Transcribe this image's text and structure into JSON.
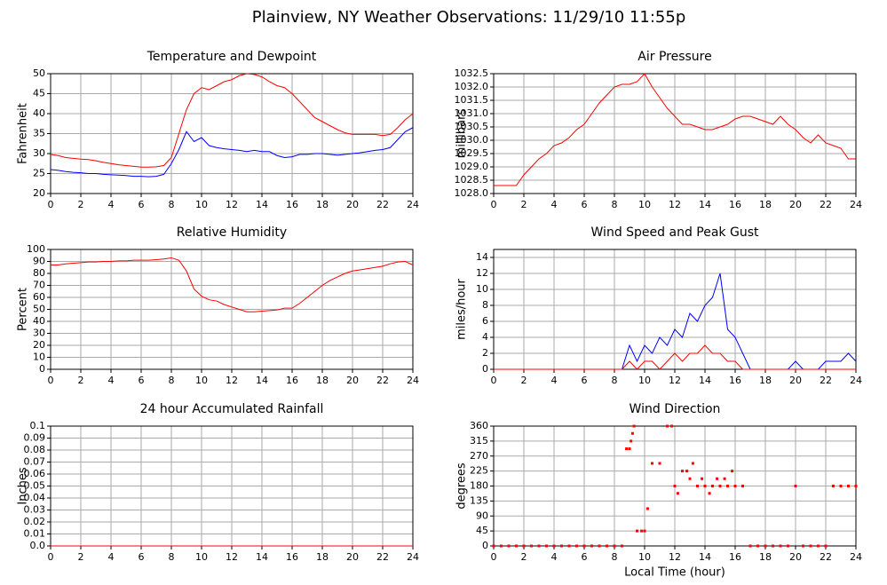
{
  "title": "Plainview, NY Weather Observations: 11/29/10 11:55p",
  "chart_data": [
    {
      "type": "line",
      "title": "Temperature and Dewpoint",
      "ylabel": "Fahrenheit",
      "x": [
        0,
        0.5,
        1,
        1.5,
        2,
        2.5,
        3,
        3.5,
        4,
        4.5,
        5,
        5.5,
        6,
        6.5,
        7,
        7.5,
        8,
        8.5,
        9,
        9.5,
        10,
        10.5,
        11,
        11.5,
        12,
        12.5,
        13,
        13.5,
        14,
        14.5,
        15,
        15.5,
        16,
        16.5,
        17,
        17.5,
        18,
        18.5,
        19,
        19.5,
        20,
        20.5,
        21,
        21.5,
        22,
        22.5,
        23,
        23.5,
        24
      ],
      "series": [
        {
          "color": "#ff0000",
          "values": [
            29.8,
            29.5,
            29,
            28.8,
            28.6,
            28.5,
            28.2,
            27.8,
            27.5,
            27.2,
            27,
            26.8,
            26.6,
            26.6,
            26.7,
            27,
            29,
            35,
            41,
            45,
            46.5,
            46,
            47,
            48,
            48.5,
            49.5,
            50,
            49.8,
            49.2,
            48,
            47,
            46.5,
            45,
            43,
            41,
            39,
            38,
            37,
            36,
            35.2,
            34.8,
            34.8,
            34.8,
            34.8,
            34.5,
            34.8,
            36.5,
            38.5,
            40
          ]
        },
        {
          "color": "#0000ff",
          "values": [
            26,
            25.8,
            25.5,
            25.3,
            25.2,
            25,
            25,
            24.8,
            24.7,
            24.6,
            24.5,
            24.3,
            24.3,
            24.2,
            24.3,
            24.8,
            27.5,
            31,
            35.5,
            33,
            34,
            32,
            31.5,
            31.2,
            31,
            30.8,
            30.5,
            30.8,
            30.5,
            30.5,
            29.5,
            29,
            29.2,
            29.8,
            29.8,
            30,
            30,
            29.8,
            29.6,
            29.8,
            30,
            30.2,
            30.5,
            30.8,
            31,
            31.5,
            33.5,
            35.5,
            36.5
          ]
        }
      ],
      "xlim": [
        0,
        24
      ],
      "xticks": [
        0,
        2,
        4,
        6,
        8,
        10,
        12,
        14,
        16,
        18,
        20,
        22,
        24
      ],
      "ylim": [
        20,
        50
      ],
      "yticks": [
        20,
        25,
        30,
        35,
        40,
        45,
        50
      ],
      "grid": true
    },
    {
      "type": "line",
      "title": "Air Pressure",
      "ylabel": "millibars",
      "x": [
        0,
        0.5,
        1,
        1.5,
        2,
        2.5,
        3,
        3.5,
        4,
        4.5,
        5,
        5.5,
        6,
        6.5,
        7,
        7.5,
        8,
        8.5,
        9,
        9.5,
        10,
        10.5,
        11,
        11.5,
        12,
        12.5,
        13,
        13.5,
        14,
        14.5,
        15,
        15.5,
        16,
        16.5,
        17,
        17.5,
        18,
        18.5,
        19,
        19.5,
        20,
        20.5,
        21,
        21.5,
        22,
        22.5,
        23,
        23.5,
        24
      ],
      "series": [
        {
          "color": "#ff0000",
          "values": [
            1028.3,
            1028.3,
            1028.3,
            1028.3,
            1028.7,
            1029,
            1029.3,
            1029.5,
            1029.8,
            1029.9,
            1030.1,
            1030.4,
            1030.6,
            1031,
            1031.4,
            1031.7,
            1032,
            1032.1,
            1032.1,
            1032.2,
            1032.5,
            1032,
            1031.6,
            1031.2,
            1030.9,
            1030.6,
            1030.6,
            1030.5,
            1030.4,
            1030.4,
            1030.5,
            1030.6,
            1030.8,
            1030.9,
            1030.9,
            1030.8,
            1030.7,
            1030.6,
            1030.9,
            1030.6,
            1030.4,
            1030.1,
            1029.9,
            1030.2,
            1029.9,
            1029.8,
            1029.7,
            1029.3,
            1029.3
          ]
        }
      ],
      "xlim": [
        0,
        24
      ],
      "xticks": [
        0,
        2,
        4,
        6,
        8,
        10,
        12,
        14,
        16,
        18,
        20,
        22,
        24
      ],
      "ylim": [
        1028,
        1032.5
      ],
      "yticks": [
        {
          "value": 1028,
          "label": "1028.0"
        },
        1028.5,
        {
          "value": 1029,
          "label": "1029.0"
        },
        1029.5,
        {
          "value": 1030,
          "label": "1030.0"
        },
        1030.5,
        {
          "value": 1031,
          "label": "1031.0"
        },
        1031.5,
        {
          "value": 1032,
          "label": "1032.0"
        },
        1032.5
      ],
      "grid": true
    },
    {
      "type": "line",
      "title": "Relative Humidity",
      "ylabel": "Percent",
      "x": [
        0,
        0.5,
        1,
        1.5,
        2,
        2.5,
        3,
        3.5,
        4,
        4.5,
        5,
        5.5,
        6,
        6.5,
        7,
        7.5,
        8,
        8.5,
        9,
        9.5,
        10,
        10.5,
        11,
        11.5,
        12,
        12.5,
        13,
        13.5,
        14,
        14.5,
        15,
        15.5,
        16,
        16.5,
        17,
        17.5,
        18,
        18.5,
        19,
        19.5,
        20,
        20.5,
        21,
        21.5,
        22,
        22.5,
        23,
        23.5,
        24
      ],
      "series": [
        {
          "color": "#ff0000",
          "values": [
            87,
            87,
            88,
            88.5,
            89,
            89.5,
            89.5,
            90,
            90,
            90.5,
            90.5,
            91,
            91,
            91,
            91.5,
            92,
            93,
            91,
            82,
            67,
            61,
            58,
            57,
            54,
            52,
            50,
            48,
            48,
            48.5,
            49,
            49.5,
            51,
            51,
            55,
            60,
            65,
            70,
            74,
            77,
            80,
            82,
            83,
            84,
            85,
            86,
            88,
            89.5,
            90,
            87
          ]
        }
      ],
      "xlim": [
        0,
        24
      ],
      "xticks": [
        0,
        2,
        4,
        6,
        8,
        10,
        12,
        14,
        16,
        18,
        20,
        22,
        24
      ],
      "ylim": [
        0,
        100
      ],
      "yticks": [
        0,
        10,
        20,
        30,
        40,
        50,
        60,
        70,
        80,
        90,
        100
      ],
      "grid": true
    },
    {
      "type": "line",
      "title": "Wind Speed and Peak Gust",
      "ylabel": "miles/hour",
      "x": [
        0,
        0.5,
        1,
        1.5,
        2,
        2.5,
        3,
        3.5,
        4,
        4.5,
        5,
        5.5,
        6,
        6.5,
        7,
        7.5,
        8,
        8.5,
        9,
        9.5,
        10,
        10.5,
        11,
        11.5,
        12,
        12.5,
        13,
        13.5,
        14,
        14.5,
        15,
        15.5,
        16,
        16.5,
        17,
        17.5,
        18,
        18.5,
        19,
        19.5,
        20,
        20.5,
        21,
        21.5,
        22,
        22.5,
        23,
        23.5,
        24
      ],
      "series": [
        {
          "color": "#0000ff",
          "values": [
            0,
            0,
            0,
            0,
            0,
            0,
            0,
            0,
            0,
            0,
            0,
            0,
            0,
            0,
            0,
            0,
            0,
            0,
            3,
            1,
            3,
            2,
            4,
            3,
            5,
            4,
            7,
            6,
            8,
            9,
            12,
            5,
            4,
            2,
            0,
            0,
            0,
            0,
            0,
            0,
            1,
            0,
            0,
            0,
            1,
            1,
            1,
            2,
            1
          ]
        },
        {
          "color": "#ff0000",
          "values": [
            0,
            0,
            0,
            0,
            0,
            0,
            0,
            0,
            0,
            0,
            0,
            0,
            0,
            0,
            0,
            0,
            0,
            0,
            1,
            0,
            1,
            1,
            0,
            1,
            2,
            1,
            2,
            2,
            3,
            2,
            2,
            1,
            1,
            0,
            0,
            0,
            0,
            0,
            0,
            0,
            0,
            0,
            0,
            0,
            0,
            0,
            0,
            0,
            0
          ]
        }
      ],
      "xlim": [
        0,
        24
      ],
      "xticks": [
        0,
        2,
        4,
        6,
        8,
        10,
        12,
        14,
        16,
        18,
        20,
        22,
        24
      ],
      "ylim": [
        0,
        15
      ],
      "yticks": [
        0,
        2,
        4,
        6,
        8,
        10,
        12,
        14
      ],
      "grid": true
    },
    {
      "type": "line",
      "title": "24 hour Accumulated Rainfall",
      "ylabel": "Inches",
      "x": [
        0,
        24
      ],
      "series": [
        {
          "color": "#ff0000",
          "values": [
            0,
            0
          ]
        }
      ],
      "xlim": [
        0,
        24
      ],
      "xticks": [
        0,
        2,
        4,
        6,
        8,
        10,
        12,
        14,
        16,
        18,
        20,
        22,
        24
      ],
      "ylim": [
        0,
        0.1
      ],
      "yticks": [
        {
          "value": 0,
          "label": "0.0"
        },
        0.01,
        0.02,
        0.03,
        0.04,
        0.05,
        0.06,
        0.07,
        0.08,
        0.09,
        0.1
      ],
      "grid": true
    },
    {
      "type": "scatter",
      "title": "Wind Direction",
      "ylabel": "degrees",
      "xlabel": "Local Time (hour)",
      "x": [
        0,
        0.5,
        1,
        1.5,
        2,
        2.5,
        3,
        3.5,
        4,
        4.5,
        5,
        5.5,
        6,
        6.5,
        7,
        7.5,
        8,
        8.5,
        8.8,
        9,
        9.1,
        9.2,
        9.3,
        9.5,
        9.8,
        10,
        10.2,
        10.5,
        11,
        11.5,
        11.8,
        12,
        12.2,
        12.5,
        12.8,
        13,
        13.2,
        13.5,
        13.8,
        14,
        14.3,
        14.5,
        14.8,
        15,
        15.3,
        15.5,
        15.8,
        16,
        16.5,
        17,
        17.5,
        18,
        18.5,
        19,
        19.5,
        20,
        20.5,
        21,
        21.5,
        22,
        22.5,
        23,
        23.5,
        24
      ],
      "series": [
        {
          "color": "#ff0000",
          "values": [
            0,
            0,
            0,
            0,
            0,
            0,
            0,
            0,
            0,
            0,
            0,
            0,
            0,
            0,
            0,
            0,
            0,
            0,
            292,
            292,
            315,
            338,
            360,
            45,
            45,
            45,
            112,
            248,
            248,
            360,
            360,
            180,
            158,
            225,
            225,
            202,
            248,
            180,
            202,
            180,
            158,
            180,
            202,
            180,
            202,
            180,
            225,
            180,
            180,
            0,
            0,
            0,
            0,
            0,
            0,
            180,
            0,
            0,
            0,
            0,
            180,
            180,
            180,
            180
          ]
        }
      ],
      "xlim": [
        0,
        24
      ],
      "xticks": [
        0,
        2,
        4,
        6,
        8,
        10,
        12,
        14,
        16,
        18,
        20,
        22,
        24
      ],
      "ylim": [
        0,
        360
      ],
      "yticks": [
        0,
        45,
        90,
        135,
        180,
        225,
        270,
        315,
        360
      ],
      "grid": true
    }
  ]
}
